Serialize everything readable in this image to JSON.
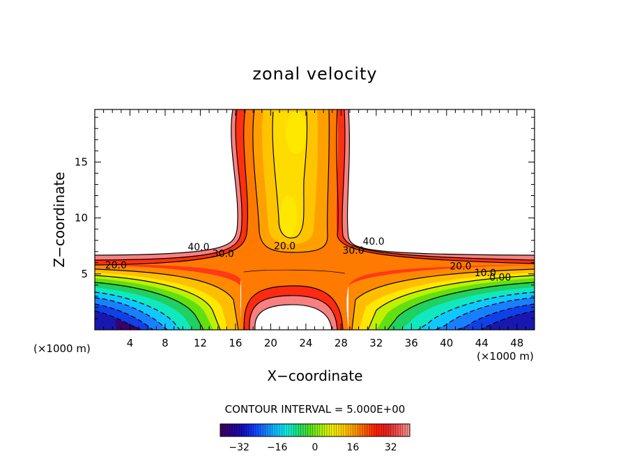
{
  "chart_data": {
    "type": "contour",
    "title": "zonal velocity",
    "xlabel": "X−coordinate",
    "ylabel": "Z−coordinate",
    "x_unit_left": "(×1000 m)",
    "x_unit_right": "(×1000 m)",
    "x_ticks": [
      4,
      8,
      12,
      16,
      20,
      24,
      28,
      32,
      36,
      40,
      44,
      48
    ],
    "y_ticks": [
      5,
      10,
      15
    ],
    "xlim": [
      0,
      50
    ],
    "ylim": [
      0,
      19.7
    ],
    "contour_interval_text": "CONTOUR INTERVAL = 5.000E+00",
    "contour_labels": [
      {
        "text": "40.0",
        "x": 11.8,
        "z": 7.1
      },
      {
        "text": "30.0",
        "x": 14.6,
        "z": 6.5
      },
      {
        "text": "20.0",
        "x": 2.4,
        "z": 5.5
      },
      {
        "text": "20.0",
        "x": 21.6,
        "z": 7.2
      },
      {
        "text": "30.0",
        "x": 29.4,
        "z": 6.8
      },
      {
        "text": "40.0",
        "x": 31.7,
        "z": 7.6
      },
      {
        "text": "20.0",
        "x": 41.6,
        "z": 5.4
      },
      {
        "text": "10.0",
        "x": 44.4,
        "z": 4.8
      },
      {
        "text": "0.00",
        "x": 46.1,
        "z": 4.4
      }
    ],
    "colorbar": {
      "ticks": [
        "−32",
        "−16",
        "0",
        "16",
        "32"
      ],
      "range": [
        -40,
        40
      ],
      "colors": [
        "#3a0060",
        "#2a0090",
        "#1010c0",
        "#1040ff",
        "#1880ff",
        "#10c0ff",
        "#10f0e0",
        "#20e070",
        "#50e020",
        "#a0f010",
        "#f0f000",
        "#ffd000",
        "#ffa000",
        "#ff6000",
        "#ff2000",
        "#e82020",
        "#f05050",
        "#f89090"
      ]
    },
    "fields": [
      {
        "name": "center_stem",
        "value": 25,
        "color": "#ff9a00"
      },
      {
        "name": "core",
        "value": 15,
        "color": "#ffd400"
      },
      {
        "name": "stem_edge",
        "value": 35,
        "color": "#ff3a10"
      },
      {
        "name": "jet",
        "value": 30,
        "color": "#ff7a00"
      }
    ]
  }
}
